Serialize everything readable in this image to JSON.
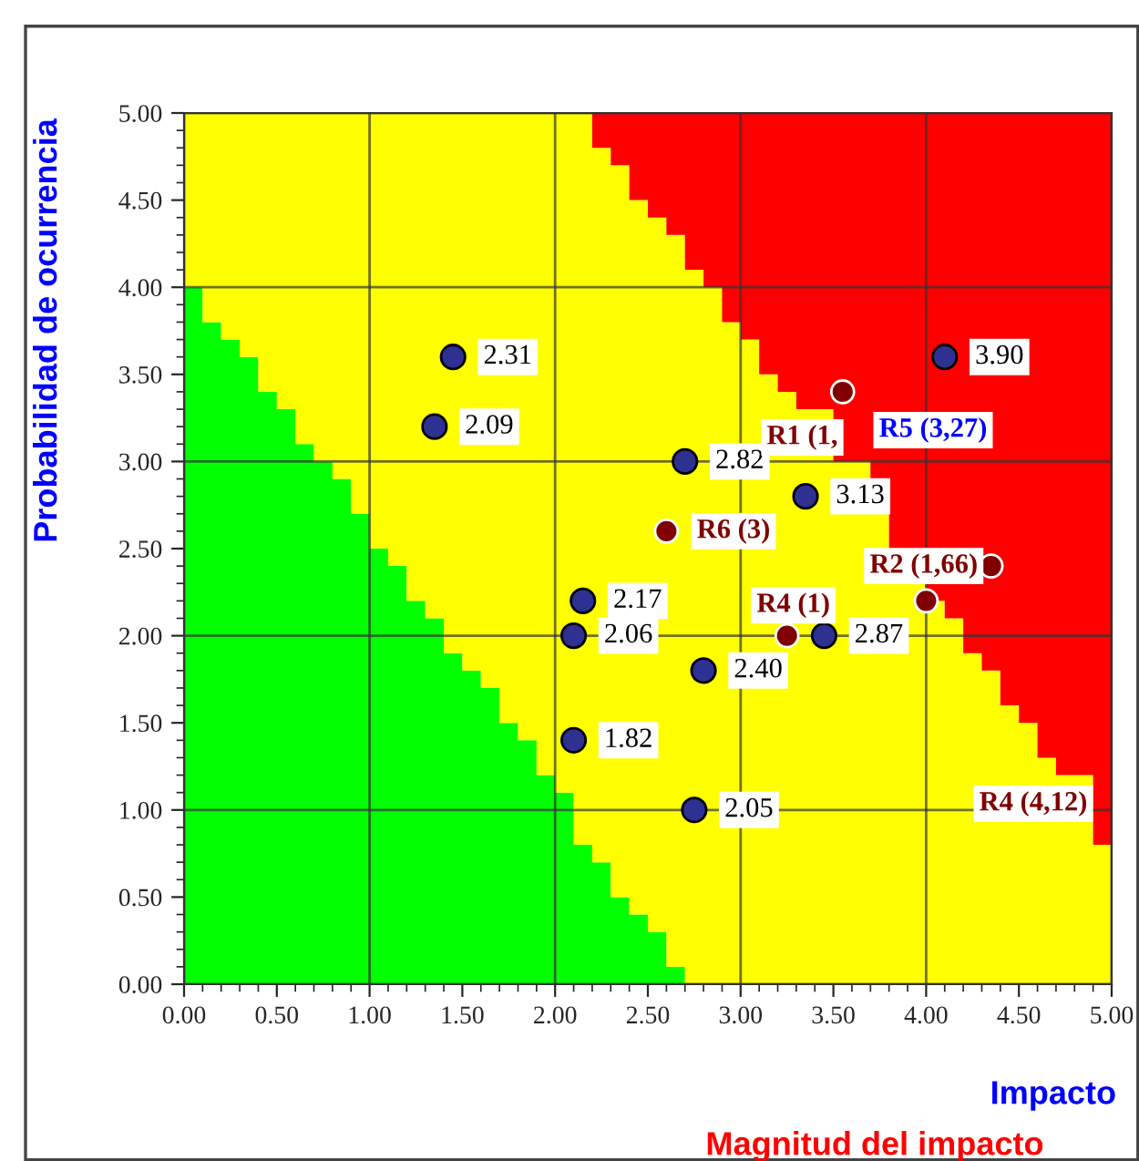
{
  "chart_data": {
    "type": "scatter",
    "xlabel": "Impacto",
    "ylabel": "Probabilidad de ocurrencia",
    "xlim": [
      0,
      5
    ],
    "ylim": [
      0,
      5
    ],
    "xticks": [
      {
        "value": 0,
        "label": "0.00"
      },
      {
        "value": 0.5,
        "label": "0.50"
      },
      {
        "value": 1,
        "label": "1.00"
      },
      {
        "value": 1.5,
        "label": "1.50"
      },
      {
        "value": 2,
        "label": "2.00"
      },
      {
        "value": 2.5,
        "label": "2.50"
      },
      {
        "value": 3,
        "label": "3.00"
      },
      {
        "value": 3.5,
        "label": "3.50"
      },
      {
        "value": 4,
        "label": "4.00"
      },
      {
        "value": 4.5,
        "label": "4.50"
      },
      {
        "value": 5,
        "label": "5.00"
      }
    ],
    "yticks": [
      {
        "value": 0,
        "label": "0.00"
      },
      {
        "value": 0.5,
        "label": "0.50"
      },
      {
        "value": 1,
        "label": "1.00"
      },
      {
        "value": 1.5,
        "label": "1.50"
      },
      {
        "value": 2,
        "label": "2.00"
      },
      {
        "value": 2.5,
        "label": "2.50"
      },
      {
        "value": 3,
        "label": "3.00"
      },
      {
        "value": 3.5,
        "label": "3.50"
      },
      {
        "value": 4,
        "label": "4.00"
      },
      {
        "value": 4.5,
        "label": "4.50"
      },
      {
        "value": 5,
        "label": "5.00"
      }
    ],
    "grid": true,
    "stacked": true,
    "legend": false,
    "series": [
      {
        "type": "area",
        "color": "#00ff00",
        "x": [
          0,
          0.1,
          0.2,
          0.3,
          0.4,
          0.5,
          0.6,
          0.7,
          0.8,
          0.9,
          1.0,
          1.1,
          1.2,
          1.3,
          1.4,
          1.5,
          1.6,
          1.7,
          1.8,
          1.9,
          2.0,
          2.1,
          2.2,
          2.3,
          2.4,
          2.5,
          2.6,
          2.7,
          2.8,
          2.9,
          3.0,
          3.1,
          3.2,
          3.3,
          3.4,
          3.5,
          3.6,
          3.7,
          3.8,
          3.9,
          4.0,
          4.1,
          4.2,
          4.3,
          4.4,
          4.5,
          4.6,
          4.7,
          4.8,
          4.9,
          5.0
        ],
        "values": [
          4.0,
          3.8,
          3.7,
          3.6,
          3.4,
          3.3,
          3.1,
          3.0,
          2.9,
          2.7,
          2.5,
          2.4,
          2.2,
          2.1,
          1.9,
          1.8,
          1.7,
          1.5,
          1.4,
          1.2,
          1.1,
          0.8,
          0.7,
          0.5,
          0.4,
          0.3,
          0.1,
          0,
          0,
          0,
          0,
          0,
          0,
          0,
          0,
          0,
          0,
          0,
          0,
          0,
          0,
          0,
          0,
          0,
          0,
          0,
          0,
          0,
          0,
          0,
          0
        ]
      },
      {
        "type": "area",
        "color": "#ffff00",
        "x": [
          0,
          0.1,
          0.2,
          0.3,
          0.4,
          0.5,
          0.6,
          0.7,
          0.8,
          0.9,
          1.0,
          1.1,
          1.2,
          1.3,
          1.4,
          1.5,
          1.6,
          1.7,
          1.8,
          1.9,
          2.0,
          2.1,
          2.2,
          2.3,
          2.4,
          2.5,
          2.6,
          2.7,
          2.8,
          2.9,
          3.0,
          3.1,
          3.2,
          3.3,
          3.4,
          3.5,
          3.6,
          3.7,
          3.8,
          3.9,
          4.0,
          4.1,
          4.2,
          4.3,
          4.4,
          4.5,
          4.6,
          4.7,
          4.8,
          4.9,
          5.0
        ],
        "values": [
          1.0,
          1.2,
          1.3,
          1.4,
          1.6,
          1.7,
          1.9,
          2.0,
          2.1,
          2.3,
          2.5,
          2.6,
          2.8,
          2.9,
          3.1,
          3.2,
          3.3,
          3.5,
          3.6,
          3.8,
          3.9,
          4.2,
          4.1,
          4.2,
          4.1,
          4.1,
          4.2,
          4.1,
          4.0,
          3.8,
          3.7,
          3.5,
          3.4,
          3.3,
          null,
          3.0,
          null,
          2.7,
          2.5,
          null,
          2.2,
          2.1,
          1.9,
          1.8,
          1.6,
          1.5,
          1.3,
          1.2,
          null,
          0.8,
          0.8
        ]
      },
      {
        "type": "area",
        "color": "#ff0000",
        "x": [
          0,
          0.1,
          0.2,
          0.3,
          0.4,
          0.5,
          0.6,
          0.7,
          0.8,
          0.9,
          1.0,
          1.1,
          1.2,
          1.3,
          1.4,
          1.5,
          1.6,
          1.7,
          1.8,
          1.9,
          2.0,
          2.1,
          2.2,
          2.3,
          2.4,
          2.5,
          2.6,
          2.7,
          2.8,
          2.9,
          3.0,
          3.1,
          3.2,
          3.3,
          3.4,
          3.5,
          3.6,
          3.7,
          3.8,
          3.9,
          4.0,
          4.1,
          4.2,
          4.3,
          4.4,
          4.5,
          4.6,
          4.7,
          4.8,
          4.9,
          5.0
        ],
        "values": [
          0,
          0,
          0,
          0,
          0,
          0,
          0,
          0,
          0,
          0,
          0,
          0,
          0,
          0,
          0,
          0,
          0,
          0,
          0,
          0,
          0,
          0,
          0.2,
          0.3,
          0.5,
          0.6,
          0.7,
          0.9,
          1.0,
          1.2,
          1.3,
          1.5,
          1.6,
          1.7,
          null,
          2.0,
          null,
          2.3,
          2.5,
          null,
          2.8,
          2.9,
          3.1,
          3.2,
          3.4,
          3.5,
          3.7,
          3.8,
          null,
          4.2,
          4.2
        ]
      },
      {
        "marker": "circle",
        "color": "#2e3192",
        "x": [
          1.45,
          1.35,
          2.7,
          3.35,
          4.1,
          2.15,
          2.1,
          3.45,
          2.8,
          2.1,
          2.75
        ],
        "values": [
          3.6,
          3.2,
          3.0,
          2.8,
          3.6,
          2.2,
          2.0,
          2.0,
          1.8,
          1.4,
          1.0
        ]
      },
      {
        "marker": "circle",
        "color": "#800000",
        "x": [
          3.55,
          2.6,
          3.25,
          4.35,
          4.0
        ],
        "values": [
          3.4,
          2.6,
          2.0,
          2.4,
          2.2
        ]
      }
    ],
    "annotations": [
      {
        "text": "2.31",
        "x": 1.45,
        "y": 3.6
      },
      {
        "text": "2.09",
        "x": 1.35,
        "y": 3.2
      },
      {
        "text": "2.82",
        "x": 2.7,
        "y": 3.0
      },
      {
        "text": "3.13",
        "x": 3.35,
        "y": 2.8
      },
      {
        "text": "3.90",
        "x": 4.1,
        "y": 3.6
      },
      {
        "text": "2.17",
        "x": 2.15,
        "y": 2.2
      },
      {
        "text": "2.06",
        "x": 2.1,
        "y": 2.0
      },
      {
        "text": "2.87",
        "x": 3.45,
        "y": 2.0
      },
      {
        "text": "2.40",
        "x": 2.8,
        "y": 1.8
      },
      {
        "text": "1.82",
        "x": 2.1,
        "y": 1.4
      },
      {
        "text": "2.05",
        "x": 2.75,
        "y": 1.0
      },
      {
        "text": "R1 (1,",
        "x": 3.55,
        "y": 3.4
      },
      {
        "text": "R6 (3)",
        "x": 2.6,
        "y": 2.6
      },
      {
        "text": "R4 (1)",
        "x": 3.25,
        "y": 2.0
      },
      {
        "text": "R2 (1,66)",
        "x": 4.35,
        "y": 2.4
      },
      "R5 (3,27)",
      "R4 (4,12)",
      "Magnitud del impacto"
    ]
  }
}
